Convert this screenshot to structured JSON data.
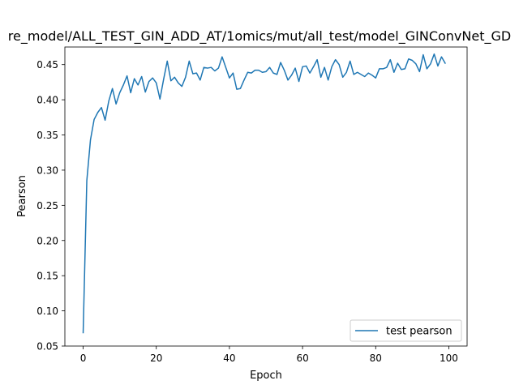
{
  "chart_data": {
    "type": "line",
    "title": "re_model/ALL_TEST_GIN_ADD_AT/1omics/mut/all_test/model_GINConvNet_GD",
    "xlabel": "Epoch",
    "ylabel": "Pearson",
    "xlim": [
      -5,
      105
    ],
    "ylim": [
      0.05,
      0.475
    ],
    "xticks": [
      0,
      20,
      40,
      60,
      80,
      100
    ],
    "xtick_labels": [
      "0",
      "20",
      "40",
      "60",
      "80",
      "100"
    ],
    "yticks": [
      0.05,
      0.1,
      0.15,
      0.2,
      0.25,
      0.3,
      0.35,
      0.4,
      0.45
    ],
    "ytick_labels": [
      "0.05",
      "0.10",
      "0.15",
      "0.20",
      "0.25",
      "0.30",
      "0.35",
      "0.40",
      "0.45"
    ],
    "grid": false,
    "legend_position": "lower right",
    "series": [
      {
        "name": "test pearson",
        "color": "#1f77b4",
        "x": [
          0,
          1,
          2,
          3,
          4,
          5,
          6,
          7,
          8,
          9,
          10,
          11,
          12,
          13,
          14,
          15,
          16,
          17,
          18,
          19,
          20,
          21,
          22,
          23,
          24,
          25,
          26,
          27,
          28,
          29,
          30,
          31,
          32,
          33,
          34,
          35,
          36,
          37,
          38,
          39,
          40,
          41,
          42,
          43,
          44,
          45,
          46,
          47,
          48,
          49,
          50,
          51,
          52,
          53,
          54,
          55,
          56,
          57,
          58,
          59,
          60,
          61,
          62,
          63,
          64,
          65,
          66,
          67,
          68,
          69,
          70,
          71,
          72,
          73,
          74,
          75,
          76,
          77,
          78,
          79,
          80,
          81,
          82,
          83,
          84,
          85,
          86,
          87,
          88,
          89,
          90,
          91,
          92,
          93,
          94,
          95,
          96,
          97,
          98,
          99
        ],
        "values": [
          0.069,
          0.285,
          0.343,
          0.372,
          0.382,
          0.389,
          0.371,
          0.398,
          0.416,
          0.394,
          0.41,
          0.421,
          0.434,
          0.41,
          0.43,
          0.421,
          0.433,
          0.411,
          0.426,
          0.431,
          0.424,
          0.401,
          0.429,
          0.455,
          0.427,
          0.432,
          0.424,
          0.419,
          0.432,
          0.455,
          0.437,
          0.438,
          0.428,
          0.446,
          0.445,
          0.446,
          0.441,
          0.445,
          0.461,
          0.446,
          0.431,
          0.438,
          0.415,
          0.416,
          0.428,
          0.439,
          0.438,
          0.442,
          0.442,
          0.439,
          0.44,
          0.446,
          0.438,
          0.436,
          0.453,
          0.442,
          0.428,
          0.435,
          0.445,
          0.426,
          0.447,
          0.448,
          0.438,
          0.447,
          0.457,
          0.432,
          0.446,
          0.428,
          0.447,
          0.457,
          0.45,
          0.432,
          0.439,
          0.455,
          0.436,
          0.439,
          0.436,
          0.433,
          0.438,
          0.435,
          0.431,
          0.444,
          0.444,
          0.446,
          0.457,
          0.439,
          0.452,
          0.443,
          0.444,
          0.458,
          0.456,
          0.451,
          0.44,
          0.464,
          0.444,
          0.451,
          0.465,
          0.448,
          0.461,
          0.452
        ]
      }
    ]
  }
}
